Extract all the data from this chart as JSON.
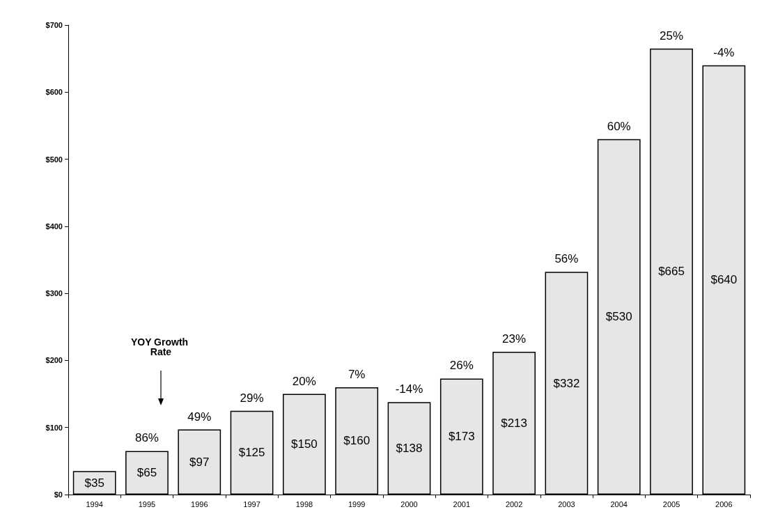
{
  "chart_data": {
    "type": "bar",
    "categories": [
      "1994",
      "1995",
      "1996",
      "1997",
      "1998",
      "1999",
      "2000",
      "2001",
      "2002",
      "2003",
      "2004",
      "2005",
      "2006"
    ],
    "values": [
      35,
      65,
      97,
      125,
      150,
      160,
      138,
      173,
      213,
      332,
      530,
      665,
      640
    ],
    "value_labels": [
      "$35",
      "$65",
      "$97",
      "$125",
      "$150",
      "$160",
      "$138",
      "$173",
      "$213",
      "$332",
      "$530",
      "$665",
      "$640"
    ],
    "color": "#e6e6e6",
    "ylim": [
      0,
      700
    ],
    "yticks": [
      {
        "value": 0,
        "label": "$0"
      },
      {
        "value": 100,
        "label": "$100"
      },
      {
        "value": 200,
        "label": "$200"
      },
      {
        "value": 300,
        "label": "$300"
      },
      {
        "value": 400,
        "label": "$400"
      },
      {
        "value": 500,
        "label": "$500"
      },
      {
        "value": 600,
        "label": "$600"
      },
      {
        "value": 700,
        "label": "$700"
      }
    ],
    "grid": false,
    "annotations": [
      "YOY Growth Rate",
      {
        "text": "86%",
        "x": "1995",
        "y": 65
      },
      {
        "text": "49%",
        "x": "1996",
        "y": 97
      },
      {
        "text": "29%",
        "x": "1997",
        "y": 125
      },
      {
        "text": "20%",
        "x": "1998",
        "y": 150
      },
      {
        "text": "7%",
        "x": "1999",
        "y": 160
      },
      {
        "text": "-14%",
        "x": "2000",
        "y": 138
      },
      {
        "text": "26%",
        "x": "2001",
        "y": 173
      },
      {
        "text": "23%",
        "x": "2002",
        "y": 213
      },
      {
        "text": "56%",
        "x": "2003",
        "y": 332
      },
      {
        "text": "60%",
        "x": "2004",
        "y": 530
      },
      {
        "text": "25%",
        "x": "2005",
        "y": 665
      },
      {
        "text": "-4%",
        "x": "2006",
        "y": 640
      }
    ]
  }
}
